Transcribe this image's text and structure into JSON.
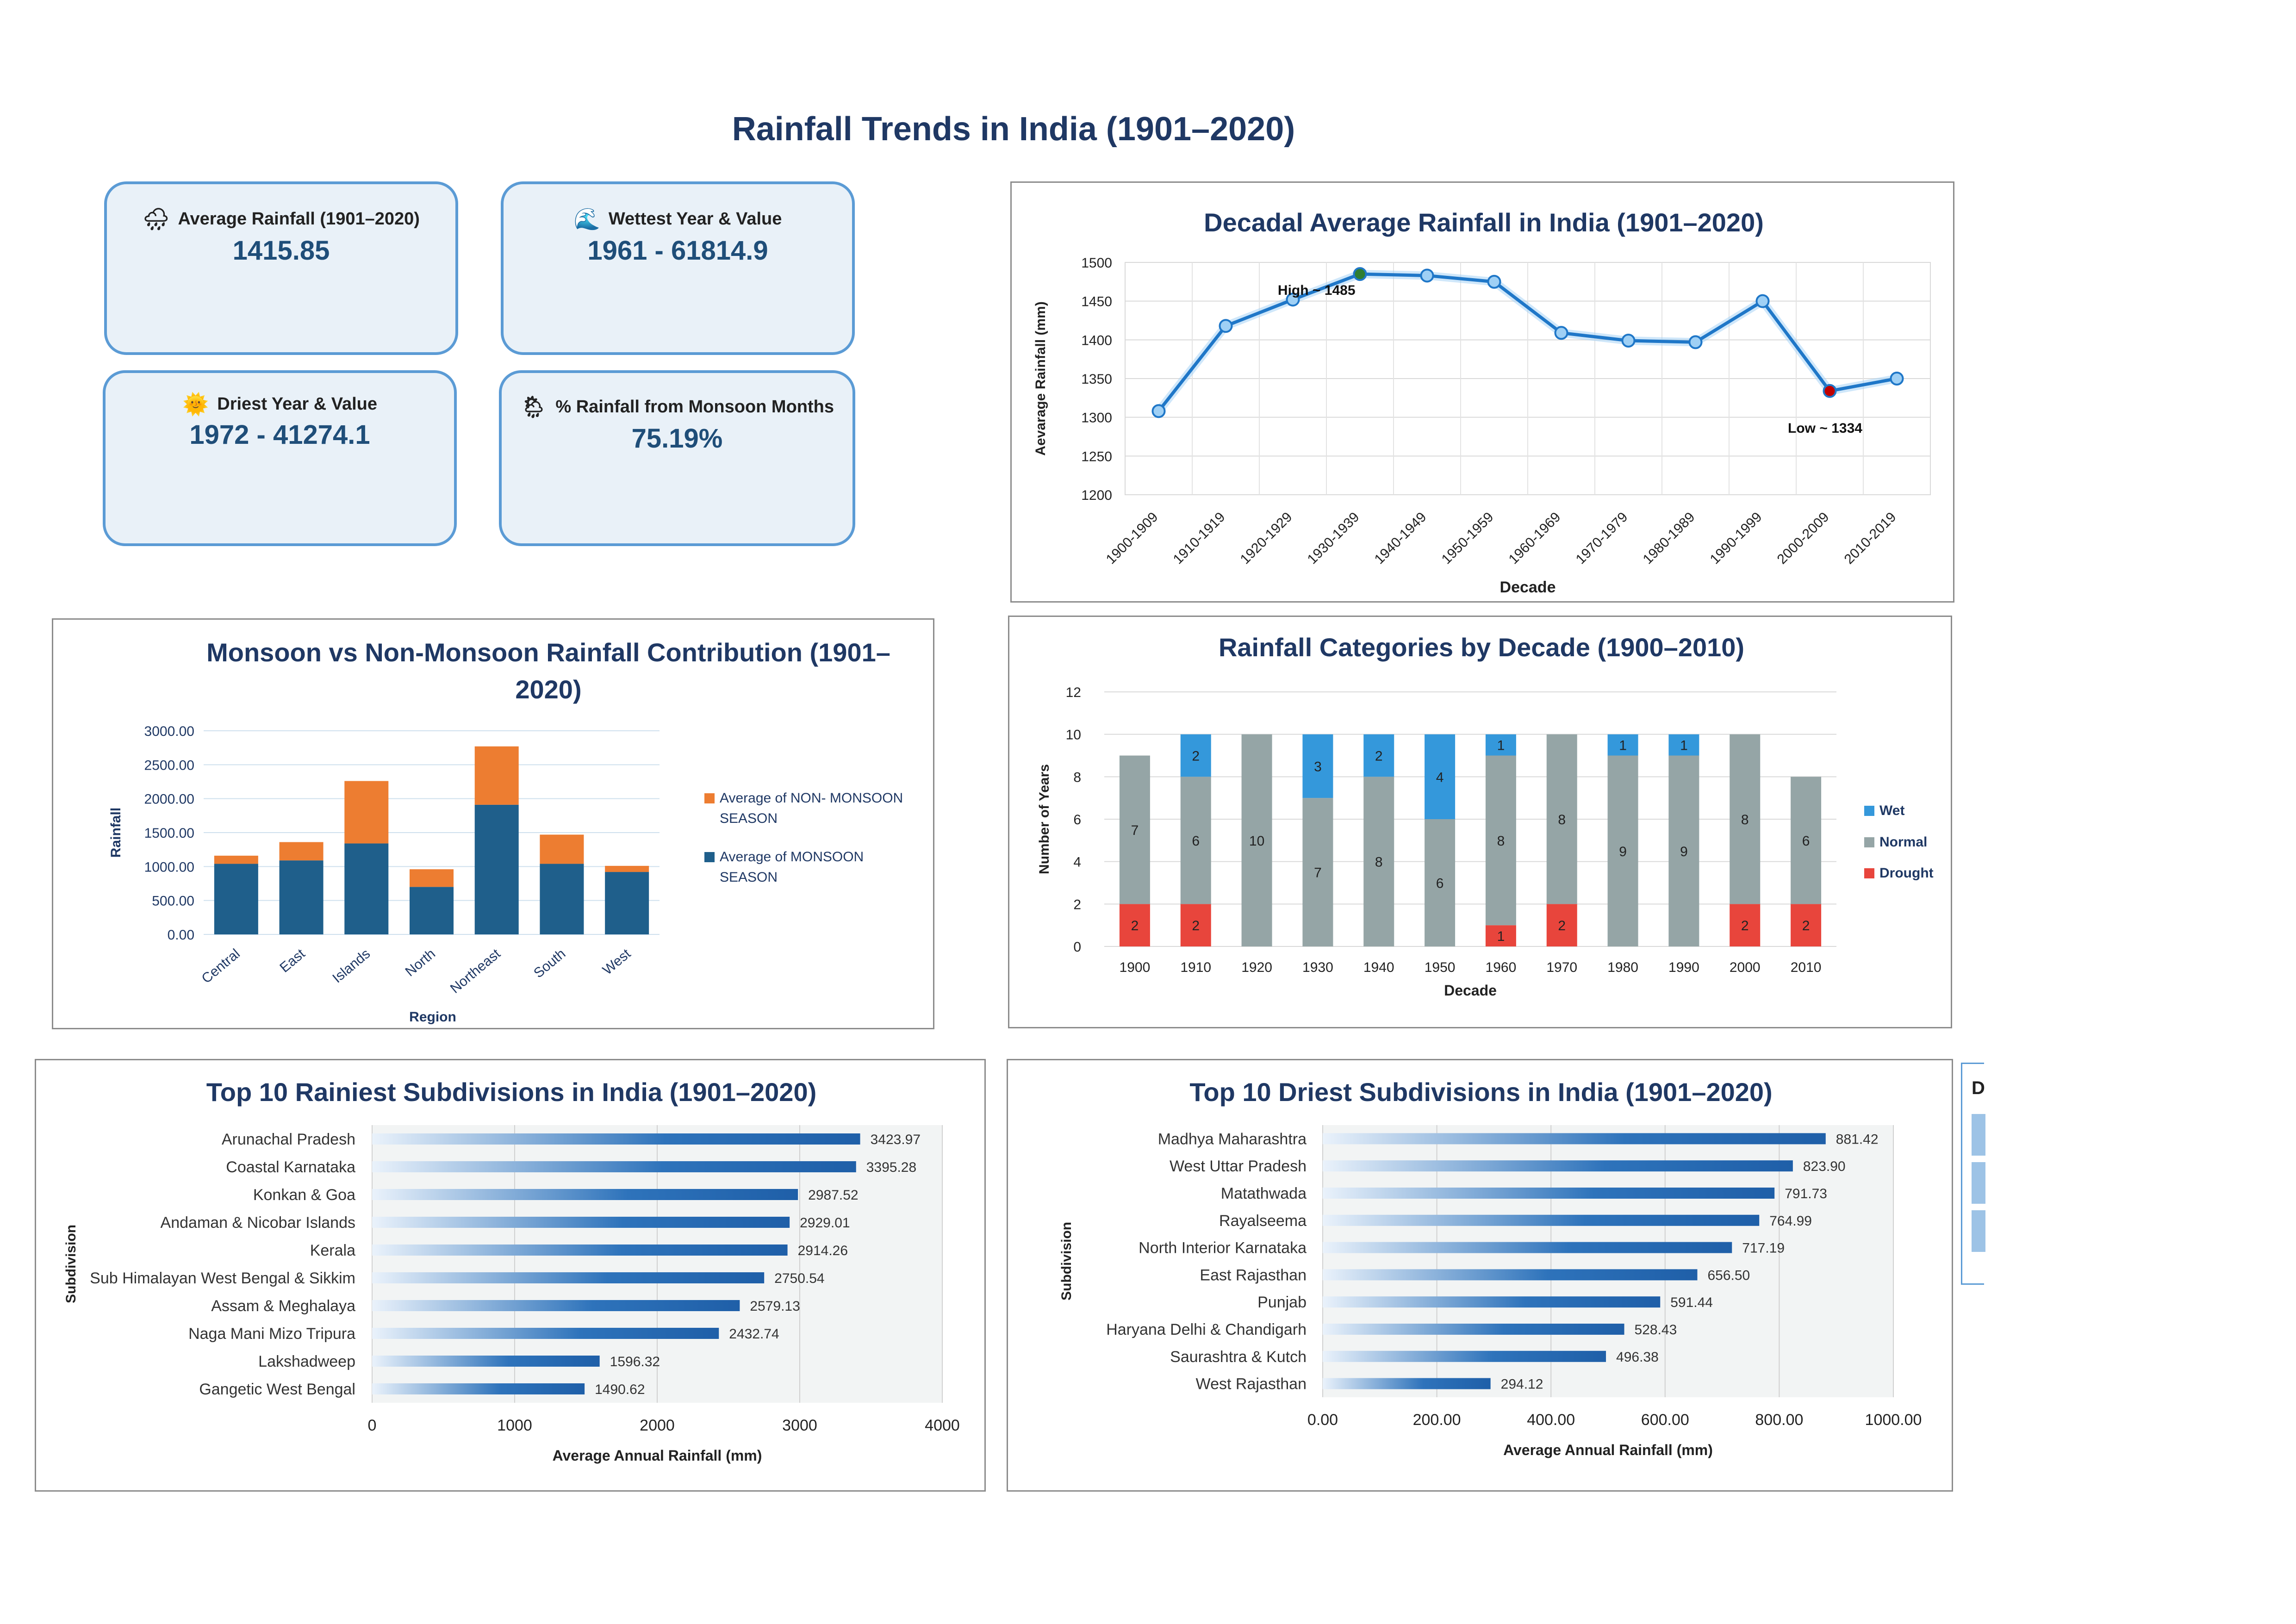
{
  "page": {
    "title": "Rainfall Trends in India (1901–2020)"
  },
  "kpis": [
    {
      "icon": "rain-cloud-icon",
      "glyph": "🌧",
      "label": "Average Rainfall (1901–2020)",
      "value": "1415.85"
    },
    {
      "icon": "wave-icon",
      "glyph": "🌊",
      "label": "Wettest Year & Value",
      "value": "1961 - 61814.9"
    },
    {
      "icon": "sun-icon",
      "glyph": "🌞",
      "label": "Driest Year & Value",
      "value": "1972 - 41274.1"
    },
    {
      "icon": "rain-cloud-sun-icon",
      "glyph": "🌦",
      "label": "% Rainfall from Monsoon Months",
      "value": "75.19%"
    }
  ],
  "side_stub": {
    "letter": "D"
  },
  "chart_data": [
    {
      "id": "decadal",
      "type": "line",
      "title": "Decadal Average Rainfall in India (1901–2020)",
      "xlabel": "Decade",
      "ylabel": "Aevarage Rainfall (mm)",
      "ylim": [
        1200,
        1500
      ],
      "yticks": [
        "1200",
        "1250",
        "1300",
        "1350",
        "1400",
        "1450",
        "1500"
      ],
      "categories": [
        "1900-1909",
        "1910-1919",
        "1920-1929",
        "1930-1939",
        "1940-1949",
        "1950-1959",
        "1960-1969",
        "1970-1979",
        "1980-1989",
        "1990-1999",
        "2000-2009",
        "2010-2019"
      ],
      "values": [
        1308,
        1418,
        1452,
        1485,
        1483,
        1475,
        1409,
        1399,
        1397,
        1450,
        1334,
        1350
      ],
      "annotations": [
        {
          "label": "High ~ 1485",
          "index": 3
        },
        {
          "label": "Low ~ 1334",
          "index": 10
        }
      ],
      "grid": true,
      "colors": {
        "line": "#1f77c8",
        "high": "#2e7d32",
        "low": "#c00000"
      }
    },
    {
      "id": "monsoon",
      "type": "bar",
      "stacked": true,
      "title": "Monsoon vs Non-Monsoon Rainfall Contribution (1901–2020)",
      "title_lines": [
        "Monsoon vs Non-Monsoon Rainfall Contribution (1901–",
        "2020)"
      ],
      "xlabel": "Region",
      "ylabel": "Rainfall",
      "ylim": [
        0,
        3000
      ],
      "yticks": [
        "0.00",
        "500.00",
        "1000.00",
        "1500.00",
        "2000.00",
        "2500.00",
        "3000.00"
      ],
      "categories": [
        "Central",
        "East",
        "Islands",
        "North",
        "Northeast",
        "South",
        "West"
      ],
      "series": [
        {
          "name": "Average of MONSOON SEASON",
          "name_lines": [
            "Average of MONSOON",
            "SEASON"
          ],
          "color": "#1f5f8b",
          "values": [
            1040,
            1090,
            1340,
            700,
            1910,
            1040,
            920
          ]
        },
        {
          "name": "Average of NON- MONSOON SEASON",
          "name_lines": [
            "Average of NON- MONSOON",
            "SEASON"
          ],
          "color": "#ed7d31",
          "values": [
            120,
            270,
            920,
            260,
            860,
            430,
            90
          ]
        }
      ],
      "legend": "right",
      "grid": true
    },
    {
      "id": "categories",
      "type": "bar",
      "stacked": true,
      "title": "Rainfall Categories by Decade (1900–2010)",
      "xlabel": "Decade",
      "ylabel": "Number of Years",
      "ylim": [
        0,
        12
      ],
      "yticks": [
        "0",
        "2",
        "4",
        "6",
        "8",
        "10",
        "12"
      ],
      "categories": [
        "1900",
        "1910",
        "1920",
        "1930",
        "1940",
        "1950",
        "1960",
        "1970",
        "1980",
        "1990",
        "2000",
        "2010"
      ],
      "series": [
        {
          "name": "Drought",
          "color": "#e8453c",
          "values": [
            2,
            2,
            0,
            0,
            0,
            0,
            1,
            2,
            0,
            0,
            2,
            2
          ]
        },
        {
          "name": "Normal",
          "color": "#95a5a6",
          "values": [
            7,
            6,
            10,
            7,
            8,
            6,
            8,
            8,
            9,
            9,
            8,
            6
          ]
        },
        {
          "name": "Wet",
          "color": "#3498db",
          "values": [
            0,
            2,
            0,
            3,
            2,
            4,
            1,
            0,
            1,
            1,
            0,
            0
          ]
        }
      ],
      "legend": "right",
      "grid": true
    },
    {
      "id": "rainiest",
      "type": "bar",
      "orientation": "horizontal",
      "title": "Top 10 Rainiest Subdivisions in India (1901–2020)",
      "xlabel": "Average Annual Rainfall (mm)",
      "ylabel": "Subdivision",
      "xlim": [
        0,
        4000
      ],
      "xticks": [
        "0",
        "1000",
        "2000",
        "3000",
        "4000"
      ],
      "categories": [
        "Arunachal Pradesh",
        "Coastal Karnataka",
        "Konkan & Goa",
        "Andaman & Nicobar Islands",
        "Kerala",
        "Sub Himalayan West Bengal & Sikkim",
        "Assam & Meghalaya",
        "Naga Mani Mizo Tripura",
        "Lakshadweep",
        "Gangetic West Bengal"
      ],
      "values": [
        3423.97,
        3395.28,
        2987.52,
        2929.01,
        2914.26,
        2750.54,
        2579.13,
        2432.74,
        1596.32,
        1490.62
      ],
      "value_labels": [
        "3423.97",
        "3395.28",
        "2987.52",
        "2929.01",
        "2914.26",
        "2750.54",
        "2579.13",
        "2432.74",
        "1596.32",
        "1490.62"
      ],
      "grid": true,
      "colors": {
        "bar": "#1f5fa8",
        "plot_bg": "#f2f4f4"
      }
    },
    {
      "id": "driest",
      "type": "bar",
      "orientation": "horizontal",
      "title": "Top 10 Driest Subdivisions in India (1901–2020)",
      "xlabel": "Average Annual Rainfall (mm)",
      "ylabel": "Subdivision",
      "xlim": [
        0,
        1000
      ],
      "xticks": [
        "0.00",
        "200.00",
        "400.00",
        "600.00",
        "800.00",
        "1000.00"
      ],
      "categories": [
        "Madhya Maharashtra",
        "West Uttar Pradesh",
        "Matathwada",
        "Rayalseema",
        "North Interior Karnataka",
        "East Rajasthan",
        "Punjab",
        "Haryana Delhi & Chandigarh",
        "Saurashtra & Kutch",
        "West Rajasthan"
      ],
      "values": [
        881.42,
        823.9,
        791.73,
        764.99,
        717.19,
        656.5,
        591.44,
        528.43,
        496.38,
        294.12
      ],
      "value_labels": [
        "881.42",
        "823.90",
        "791.73",
        "764.99",
        "717.19",
        "656.50",
        "591.44",
        "528.43",
        "496.38",
        "294.12"
      ],
      "grid": true,
      "colors": {
        "bar": "#1f5fa8",
        "plot_bg": "#f2f4f4"
      }
    }
  ]
}
